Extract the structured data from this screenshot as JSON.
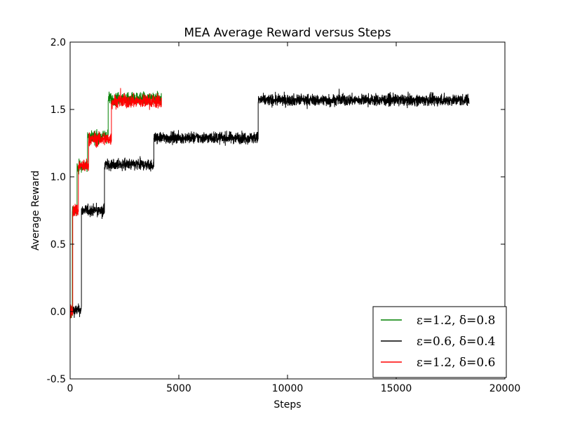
{
  "chart_data": {
    "type": "line",
    "title": "MEA Average Reward versus Steps",
    "xlabel": "Steps",
    "ylabel": "Average Reward",
    "xlim": [
      0,
      20000
    ],
    "ylim": [
      -0.5,
      2.0
    ],
    "xticks": [
      "0",
      "5000",
      "10000",
      "15000",
      "20000"
    ],
    "yticks": [
      "-0.5",
      "0.0",
      "0.5",
      "1.0",
      "1.5",
      "2.0"
    ],
    "grid": false,
    "legend_position": "lower-right",
    "series": [
      {
        "name": "ε=1.2, δ=0.8",
        "color": "#008000",
        "noise": 0.025,
        "steps": [
          {
            "x_start": 0,
            "x_end": 100,
            "level": 0.0
          },
          {
            "x_start": 100,
            "x_end": 320,
            "level": 0.75
          },
          {
            "x_start": 320,
            "x_end": 800,
            "level": 1.08
          },
          {
            "x_start": 800,
            "x_end": 1750,
            "level": 1.3
          },
          {
            "x_start": 1750,
            "x_end": 4200,
            "level": 1.58
          }
        ]
      },
      {
        "name": "ε=0.6, δ=0.4",
        "color": "#000000",
        "noise": 0.022,
        "steps": [
          {
            "x_start": 0,
            "x_end": 520,
            "level": 0.01
          },
          {
            "x_start": 520,
            "x_end": 1580,
            "level": 0.75
          },
          {
            "x_start": 1580,
            "x_end": 3850,
            "level": 1.09
          },
          {
            "x_start": 3850,
            "x_end": 8650,
            "level": 1.29
          },
          {
            "x_start": 8650,
            "x_end": 18350,
            "level": 1.57
          }
        ]
      },
      {
        "name": "ε=1.2, δ=0.6",
        "color": "#ff0000",
        "noise": 0.026,
        "steps": [
          {
            "x_start": 0,
            "x_end": 120,
            "level": 0.0
          },
          {
            "x_start": 120,
            "x_end": 380,
            "level": 0.75
          },
          {
            "x_start": 380,
            "x_end": 850,
            "level": 1.08
          },
          {
            "x_start": 850,
            "x_end": 1900,
            "level": 1.28
          },
          {
            "x_start": 1900,
            "x_end": 4200,
            "level": 1.56
          }
        ]
      }
    ]
  }
}
